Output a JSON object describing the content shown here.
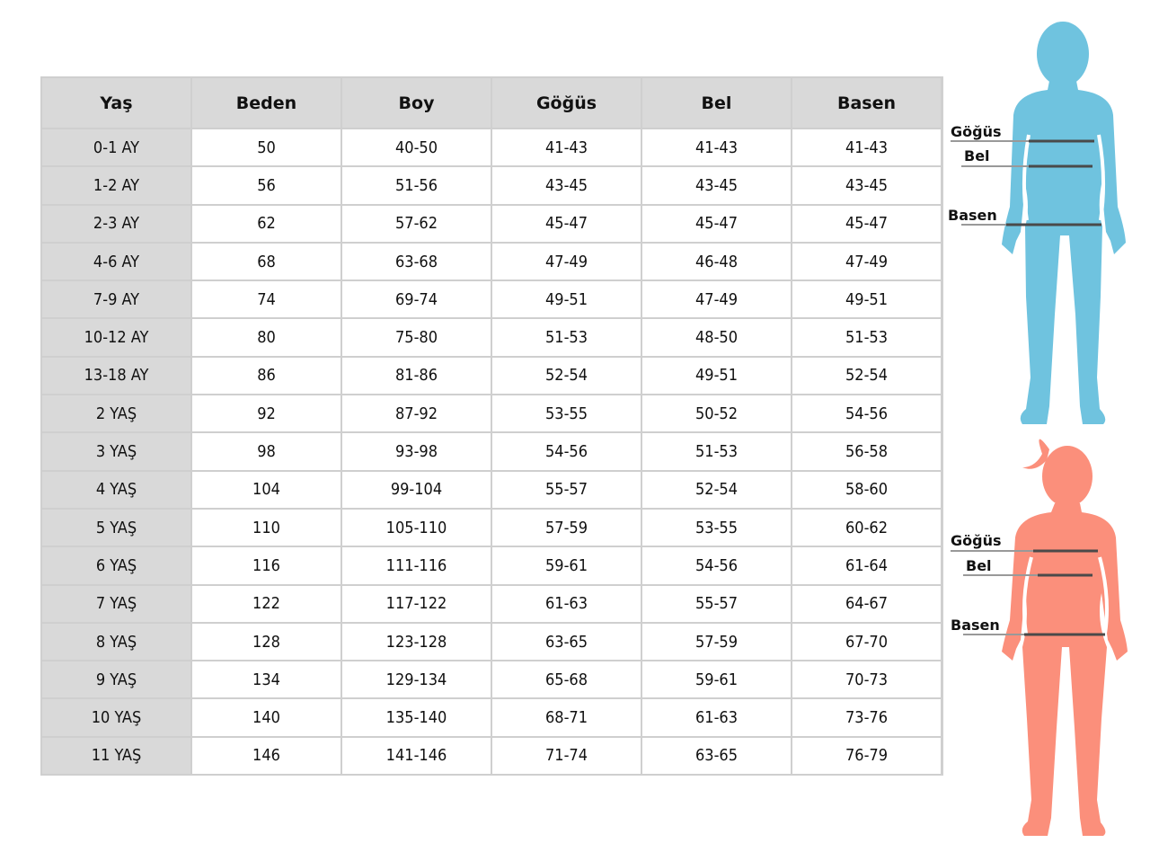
{
  "table": {
    "headers": [
      "Yaş",
      "Beden",
      "Boy",
      "Göğüs",
      "Bel",
      "Basen"
    ],
    "rows": [
      [
        "0-1 AY",
        "50",
        "40-50",
        "41-43",
        "41-43",
        "41-43"
      ],
      [
        "1-2 AY",
        "56",
        "51-56",
        "43-45",
        "43-45",
        "43-45"
      ],
      [
        "2-3 AY",
        "62",
        "57-62",
        "45-47",
        "45-47",
        "45-47"
      ],
      [
        "4-6 AY",
        "68",
        "63-68",
        "47-49",
        "46-48",
        "47-49"
      ],
      [
        "7-9 AY",
        "74",
        "69-74",
        "49-51",
        "47-49",
        "49-51"
      ],
      [
        "10-12 AY",
        "80",
        "75-80",
        "51-53",
        "48-50",
        "51-53"
      ],
      [
        "13-18 AY",
        "86",
        "81-86",
        "52-54",
        "49-51",
        "52-54"
      ],
      [
        "2 YAŞ",
        "92",
        "87-92",
        "53-55",
        "50-52",
        "54-56"
      ],
      [
        "3 YAŞ",
        "98",
        "93-98",
        "54-56",
        "51-53",
        "56-58"
      ],
      [
        "4 YAŞ",
        "104",
        "99-104",
        "55-57",
        "52-54",
        "58-60"
      ],
      [
        "5 YAŞ",
        "110",
        "105-110",
        "57-59",
        "53-55",
        "60-62"
      ],
      [
        "6 YAŞ",
        "116",
        "111-116",
        "59-61",
        "54-56",
        "61-64"
      ],
      [
        "7 YAŞ",
        "122",
        "117-122",
        "61-63",
        "55-57",
        "64-67"
      ],
      [
        "8 YAŞ",
        "128",
        "123-128",
        "63-65",
        "57-59",
        "67-70"
      ],
      [
        "9 YAŞ",
        "134",
        "129-134",
        "65-68",
        "59-61",
        "70-73"
      ],
      [
        "10 YAŞ",
        "140",
        "135-140",
        "68-71",
        "61-63",
        "73-76"
      ],
      [
        "11 YAŞ",
        "146",
        "141-146",
        "71-74",
        "63-65",
        "76-79"
      ]
    ]
  },
  "figures": {
    "boy": {
      "color": "#6fc3df",
      "labels": {
        "chest": "Göğüs",
        "waist": "Bel",
        "hip": "Basen"
      }
    },
    "girl": {
      "color": "#fb8f7b",
      "labels": {
        "chest": "Göğüs",
        "waist": "Bel",
        "hip": "Basen"
      }
    }
  }
}
